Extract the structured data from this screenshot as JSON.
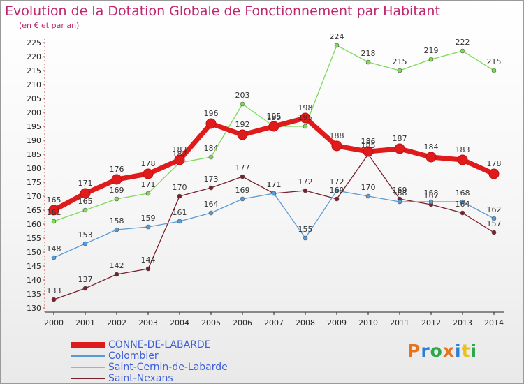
{
  "title": "Evolution de la Dotation Globale de Fonctionnement par Habitant",
  "subtitle": "(en € et par an)",
  "logo": {
    "text": "Proxiti",
    "letters": [
      "P",
      "r",
      "o",
      "x",
      "i",
      "t",
      "i"
    ],
    "colors": [
      "#e8731a",
      "#2a7fd4",
      "#2aa84a",
      "#e8731a",
      "#2a7fd4",
      "#e8c21a",
      "#2aa84a"
    ]
  },
  "chart_data": {
    "type": "line",
    "title": "Evolution de la Dotation Globale de Fonctionnement par Habitant",
    "subtitle": "(en € et par an)",
    "xlabel": "",
    "ylabel": "",
    "x": [
      "2000",
      "2001",
      "2002",
      "2003",
      "2004",
      "2005",
      "2006",
      "2007",
      "2008",
      "2009",
      "2010",
      "2011",
      "2012",
      "2013",
      "2014"
    ],
    "ylim": [
      130,
      225
    ],
    "yticks": [
      130,
      135,
      140,
      145,
      150,
      155,
      160,
      165,
      170,
      175,
      180,
      185,
      190,
      195,
      200,
      205,
      210,
      215,
      220,
      225
    ],
    "grid": false,
    "legend": "bottom-left",
    "series": [
      {
        "name": "CONNE-DE-LABARDE",
        "color": "#e01b1b",
        "values": [
          165,
          171,
          176,
          178,
          183,
          196,
          192,
          195,
          198,
          188,
          186,
          187,
          184,
          183,
          178
        ]
      },
      {
        "name": "Colombier",
        "color": "#5b9bd5",
        "values": [
          148,
          153,
          158,
          159,
          161,
          164,
          169,
          171,
          155,
          172,
          170,
          168,
          168,
          168,
          162
        ]
      },
      {
        "name": "Saint-Cernin-de-Labarde",
        "color": "#7ed957",
        "values": [
          161,
          165,
          169,
          171,
          182,
          184,
          203,
          195,
          195,
          224,
          218,
          215,
          219,
          222,
          215
        ]
      },
      {
        "name": "Saint-Nexans",
        "color": "#7a1f2b",
        "values": [
          133,
          137,
          142,
          144,
          170,
          173,
          177,
          171,
          172,
          169,
          185,
          169,
          167,
          164,
          157
        ]
      }
    ]
  }
}
